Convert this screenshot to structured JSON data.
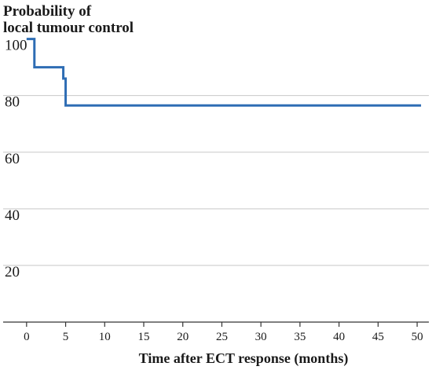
{
  "chart_data": {
    "type": "line",
    "title_lines": [
      "Probability of",
      "local tumour control"
    ],
    "xlabel": "Time after ECT response (months)",
    "ylabel": "",
    "xlim": [
      -3,
      51.5
    ],
    "ylim": [
      0,
      101
    ],
    "x_ticks": [
      0,
      5,
      10,
      15,
      20,
      25,
      30,
      35,
      40,
      45,
      50
    ],
    "y_ticks": [
      20,
      40,
      60,
      80,
      100
    ],
    "grid": "horizontal",
    "series": [
      {
        "step": true,
        "color": "#2e6db4",
        "x": [
          0,
          1,
          1,
          4.7,
          4.7,
          5,
          5,
          50.5
        ],
        "y": [
          100,
          100,
          90,
          90,
          86,
          86,
          76.5,
          76.5
        ]
      }
    ]
  }
}
